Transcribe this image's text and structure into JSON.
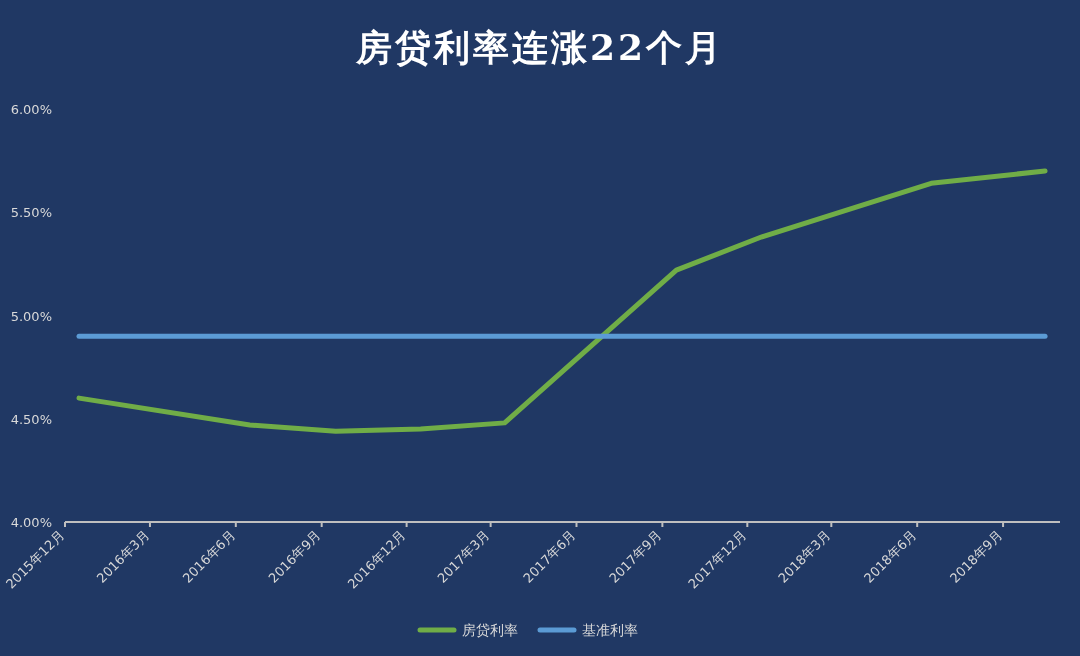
{
  "chart_data": {
    "type": "line",
    "title": "房贷利率连涨22个月",
    "x": [
      "2015-12-16",
      "2016-06-16",
      "2016-09-16",
      "2016-12-16",
      "2017-03-16",
      "2017-09-16",
      "2017-12-16",
      "2018-06-16",
      "2018-10-16"
    ],
    "series": [
      {
        "name": "房贷利率",
        "color": "#70ad47",
        "values": [
          4.6,
          4.47,
          4.44,
          4.45,
          4.48,
          5.22,
          5.38,
          5.64,
          5.7
        ]
      },
      {
        "name": "基准利率",
        "color": "#5b9bd5",
        "values": [
          4.9,
          4.9,
          4.9,
          4.9,
          4.9,
          4.9,
          4.9,
          4.9,
          4.9
        ]
      }
    ],
    "xlim": [
      "2015-12",
      "2018-11"
    ],
    "xticks": [
      {
        "value": "2015-12",
        "label": "2015年12月"
      },
      {
        "value": "2016-03",
        "label": "2016年3月"
      },
      {
        "value": "2016-06",
        "label": "2016年6月"
      },
      {
        "value": "2016-09",
        "label": "2016年9月"
      },
      {
        "value": "2016-12",
        "label": "2016年12月"
      },
      {
        "value": "2017-03",
        "label": "2017年3月"
      },
      {
        "value": "2017-06",
        "label": "2017年6月"
      },
      {
        "value": "2017-09",
        "label": "2017年9月"
      },
      {
        "value": "2017-12",
        "label": "2017年12月"
      },
      {
        "value": "2018-03",
        "label": "2018年3月"
      },
      {
        "value": "2018-06",
        "label": "2018年6月"
      },
      {
        "value": "2018-09",
        "label": "2018年9月"
      }
    ],
    "ylim": [
      4.0,
      6.0
    ],
    "yticks": [
      {
        "value": 4.0,
        "label": "4.00%"
      },
      {
        "value": 4.5,
        "label": "4.50%"
      },
      {
        "value": 5.0,
        "label": "5.00%"
      },
      {
        "value": 5.5,
        "label": "5.50%"
      },
      {
        "value": 6.0,
        "label": "6.00%"
      }
    ],
    "grid": false,
    "legend": "bottom",
    "marker": "none",
    "line_style": "solid"
  }
}
